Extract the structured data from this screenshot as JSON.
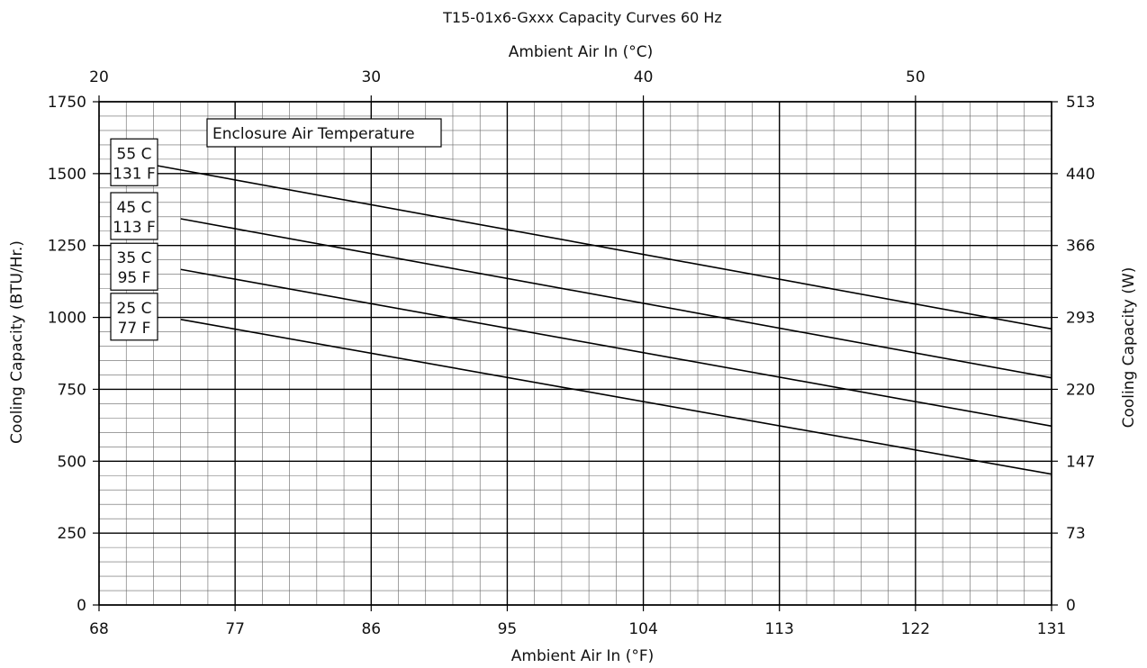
{
  "chart_data": {
    "type": "line",
    "title": "T15-01x6-Gxxx Capacity Curves 60 Hz",
    "xlabel": "Ambient Air In (°F)",
    "x2label": "Ambient Air In (°C)",
    "ylabel": "Cooling Capacity (BTU/Hr.)",
    "y2label": "Cooling Capacity (W)",
    "xlim": [
      68,
      131
    ],
    "ylim": [
      0,
      1750
    ],
    "x_ticks": [
      "68",
      "77",
      "86",
      "95",
      "104",
      "113",
      "122",
      "131"
    ],
    "x2_ticks": [
      "20",
      "30",
      "40",
      "50"
    ],
    "y_ticks": [
      "0",
      "250",
      "500",
      "750",
      "1000",
      "1250",
      "1500",
      "1750"
    ],
    "y2_ticks": [
      "0",
      "73",
      "147",
      "220",
      "293",
      "366",
      "440",
      "513"
    ],
    "grid": true,
    "annotation": "Enclosure Air Temperature",
    "series": [
      {
        "name": "55 C\n131 F",
        "line1": "55 C",
        "line2": "131 F",
        "x": [
          71.6,
          131
        ],
        "y": [
          1530,
          960
        ]
      },
      {
        "name": "45 C\n113 F",
        "line1": "45 C",
        "line2": "113 F",
        "x": [
          73.4,
          131
        ],
        "y": [
          1343,
          790
        ]
      },
      {
        "name": "35 C\n95 F",
        "line1": "35 C",
        "line2": "95 F",
        "x": [
          73.4,
          131
        ],
        "y": [
          1167,
          622
        ]
      },
      {
        "name": "25 C\n77 F",
        "line1": "25 C",
        "line2": "77 F",
        "x": [
          73.4,
          131
        ],
        "y": [
          993,
          455
        ]
      }
    ]
  }
}
